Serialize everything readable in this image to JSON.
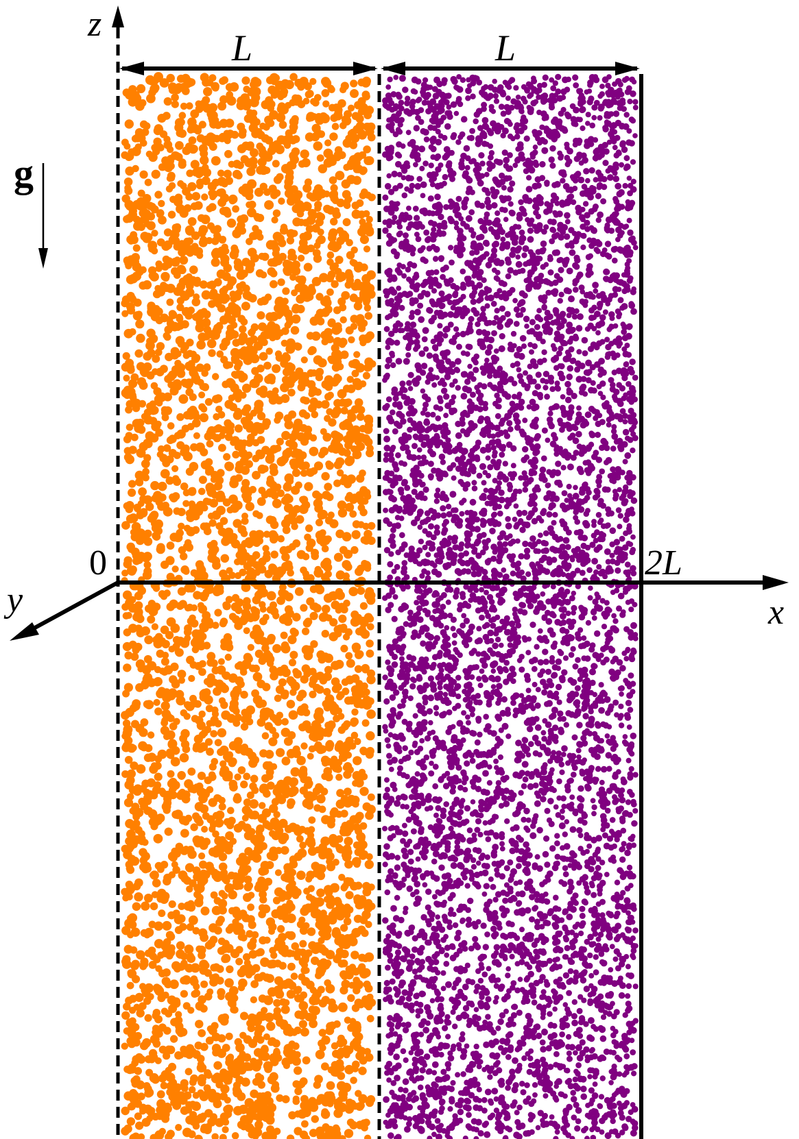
{
  "diagram": {
    "labels": {
      "z_axis": "z",
      "x_axis": "x",
      "y_axis": "y",
      "origin": "0",
      "width_left": "L",
      "width_right": "L",
      "x_end": "2L",
      "gravity": "g"
    },
    "colors": {
      "left_region_particles": "#ff8000",
      "right_region_particles": "#800080",
      "lines": "#000000",
      "background": "#ffffff"
    },
    "regions": [
      {
        "name": "left-region",
        "particle_color": "#ff8000",
        "boundary_style": "dashed"
      },
      {
        "name": "right-region",
        "particle_color": "#800080",
        "boundary_style": "solid"
      }
    ]
  }
}
